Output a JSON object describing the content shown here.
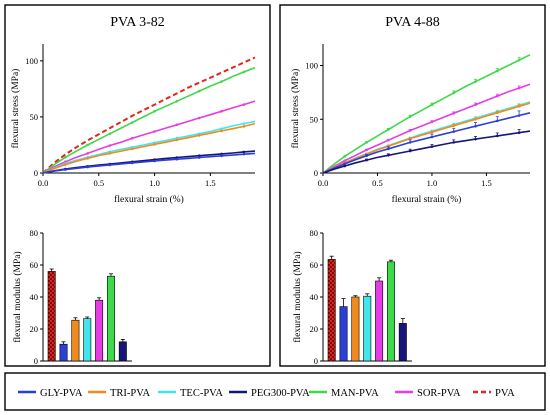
{
  "colors": {
    "GLY-PVA": "#2a3fd6",
    "TRI-PVA": "#f08a1c",
    "TEC-PVA": "#41e6ec",
    "PEG300-PVA": "#15157a",
    "MAN-PVA": "#3dd94a",
    "SOR-PVA": "#e63ce6",
    "PVA": "#e2261f"
  },
  "panels": [
    {
      "title": "PVA 3-82",
      "line": {
        "xlabel": "flexural strain (%)",
        "ylabel": "flexural stress (MPa)",
        "xlim": [
          0,
          1.9
        ],
        "ylim": [
          0,
          115
        ],
        "xticks": [
          "0.0",
          "0.5",
          "1.0",
          "1.5"
        ],
        "yticks": [
          "0",
          "50",
          "100"
        ]
      },
      "bar": {
        "ylabel": "flexural modulus (MPa)",
        "ylim": [
          0,
          80
        ],
        "yticks": [
          "0",
          "20",
          "40",
          "60",
          "80"
        ]
      }
    },
    {
      "title": "PVA 4-88",
      "line": {
        "xlabel": "flexural strain (%)",
        "ylabel": "flexural stress (MPa)",
        "xlim": [
          0,
          1.9
        ],
        "ylim": [
          0,
          120
        ],
        "xticks": [
          "0.0",
          "0.5",
          "1.0",
          "1.5"
        ],
        "yticks": [
          "0",
          "50",
          "100"
        ]
      },
      "bar": {
        "ylabel": "flexural modulus (MPa)",
        "ylim": [
          0,
          80
        ],
        "yticks": [
          "0",
          "20",
          "40",
          "60",
          "80"
        ]
      }
    }
  ],
  "legend": {
    "placement": "bottom",
    "items": [
      {
        "name": "GLY-PVA"
      },
      {
        "name": "TRI-PVA"
      },
      {
        "name": "TEC-PVA"
      },
      {
        "name": "PEG300-PVA"
      },
      {
        "name": "MAN-PVA"
      },
      {
        "name": "SOR-PVA"
      },
      {
        "name": "PVA",
        "dashed": true
      }
    ]
  },
  "chart_data": [
    {
      "type": "line",
      "title": "PVA 3-82",
      "xlabel": "flexural strain (%)",
      "ylabel": "flexural stress (MPa)",
      "xlim": [
        0,
        1.9
      ],
      "ylim": [
        0,
        115
      ],
      "x": [
        0,
        0.1,
        0.2,
        0.3,
        0.4,
        0.5,
        0.6,
        0.7,
        0.8,
        0.9,
        1.0,
        1.1,
        1.2,
        1.3,
        1.4,
        1.5,
        1.6,
        1.7,
        1.8,
        1.9
      ],
      "series": [
        {
          "name": "PVA",
          "dashed": true,
          "values": [
            0,
            9,
            16.5,
            23,
            29,
            34.5,
            40,
            45.5,
            51,
            56,
            61,
            66,
            71,
            76,
            80.5,
            85,
            89.5,
            94,
            98.5,
            103
          ]
        },
        {
          "name": "MAN-PVA",
          "values": [
            0,
            7.5,
            14,
            19.5,
            25,
            30,
            35,
            40,
            45,
            50,
            55,
            59.5,
            64,
            68.5,
            73,
            77.5,
            81.5,
            86,
            90,
            94
          ]
        },
        {
          "name": "SOR-PVA",
          "values": [
            0,
            5.5,
            10,
            14,
            17.5,
            21,
            24.5,
            27.5,
            31,
            34,
            37,
            40,
            43,
            46,
            49,
            52,
            55,
            58,
            61,
            64
          ]
        },
        {
          "name": "TEC-PVA",
          "values": [
            0,
            4.5,
            8.5,
            11.5,
            14,
            16.5,
            19,
            21,
            23,
            25,
            27,
            29,
            31,
            33,
            35,
            37,
            39.5,
            42,
            44,
            46
          ]
        },
        {
          "name": "TRI-PVA",
          "values": [
            0,
            4,
            7.5,
            10.5,
            13,
            15.5,
            17.5,
            19.5,
            21.5,
            23.5,
            25.5,
            27.5,
            29.5,
            31.5,
            33.5,
            35.5,
            37.5,
            39.5,
            41.5,
            44
          ]
        },
        {
          "name": "PEG300-PVA",
          "values": [
            0,
            2,
            3.5,
            4.8,
            6,
            7,
            8,
            9,
            10,
            11,
            12,
            13,
            13.8,
            14.6,
            15.4,
            16.2,
            17,
            17.8,
            18.8,
            19.5
          ]
        },
        {
          "name": "GLY-PVA",
          "values": [
            0,
            1.7,
            3,
            4.2,
            5.3,
            6.3,
            7.2,
            8.1,
            9,
            9.9,
            10.7,
            11.5,
            12.3,
            13,
            13.8,
            14.5,
            15.3,
            16,
            16.8,
            17.5
          ]
        }
      ]
    },
    {
      "type": "line",
      "title": "PVA 4-88",
      "xlabel": "flexural strain (%)",
      "ylabel": "flexural stress (MPa)",
      "xlim": [
        0,
        1.9
      ],
      "ylim": [
        0,
        120
      ],
      "x": [
        0,
        0.1,
        0.2,
        0.3,
        0.4,
        0.5,
        0.6,
        0.7,
        0.8,
        0.9,
        1.0,
        1.1,
        1.2,
        1.3,
        1.4,
        1.5,
        1.6,
        1.7,
        1.8,
        1.9
      ],
      "series": [
        {
          "name": "MAN-PVA",
          "values": [
            0,
            8,
            15.5,
            22,
            28.5,
            34.5,
            40.5,
            46.5,
            52.5,
            58,
            63.5,
            69,
            74.5,
            80,
            85,
            90,
            95,
            100,
            105,
            110
          ]
        },
        {
          "name": "SOR-PVA",
          "values": [
            0,
            6,
            11.5,
            16.5,
            21.5,
            26,
            30.5,
            35,
            39.5,
            43.5,
            47.5,
            51.5,
            55.5,
            59.5,
            63.5,
            67.5,
            71.5,
            75.5,
            79,
            82.5
          ]
        },
        {
          "name": "TEC-PVA",
          "values": [
            0,
            5,
            9.5,
            14,
            18,
            22,
            25.5,
            29,
            32.5,
            36,
            39,
            42,
            45,
            48,
            51,
            54,
            57,
            60,
            63,
            66
          ]
        },
        {
          "name": "TRI-PVA",
          "values": [
            0,
            5,
            9.5,
            13.5,
            17.5,
            21.5,
            25,
            28.5,
            32,
            35,
            38,
            41,
            44,
            47,
            50,
            53,
            56,
            59,
            62,
            65
          ]
        },
        {
          "name": "GLY-PVA",
          "values": [
            0,
            4.5,
            8.5,
            12.5,
            16,
            19.5,
            22.5,
            25.5,
            28.5,
            31,
            33.5,
            36,
            38.5,
            41,
            43.5,
            46,
            48.5,
            51,
            53.5,
            56
          ]
        },
        {
          "name": "PEG300-PVA",
          "values": [
            0,
            3.5,
            6.5,
            9.5,
            12,
            14.5,
            16.5,
            18.5,
            20.5,
            22.5,
            24.5,
            26.5,
            28.5,
            30,
            31.5,
            33,
            34.5,
            36,
            37.5,
            39
          ]
        }
      ]
    },
    {
      "type": "bar",
      "title": "PVA 3-82",
      "ylabel": "flexural modulus (MPa)",
      "ylim": [
        0,
        80
      ],
      "categories": [
        "PVA",
        "GLY-PVA",
        "TRI-PVA",
        "TEC-PVA",
        "SOR-PVA",
        "MAN-PVA",
        "PEG300-PVA"
      ],
      "values": [
        56,
        10.5,
        25.5,
        26.5,
        38,
        53,
        12
      ],
      "errors": [
        1.5,
        1.5,
        1.5,
        1.0,
        1.5,
        1.5,
        1.5
      ]
    },
    {
      "type": "bar",
      "title": "PVA 4-88",
      "ylabel": "flexural modulus (MPa)",
      "ylim": [
        0,
        80
      ],
      "categories": [
        "PVA",
        "GLY-PVA",
        "TRI-PVA",
        "TEC-PVA",
        "SOR-PVA",
        "MAN-PVA",
        "PEG300-PVA"
      ],
      "values": [
        63.5,
        34,
        40,
        40.5,
        50,
        62,
        23.5
      ],
      "errors": [
        2,
        5,
        0.8,
        1.5,
        2,
        1,
        3
      ]
    }
  ]
}
